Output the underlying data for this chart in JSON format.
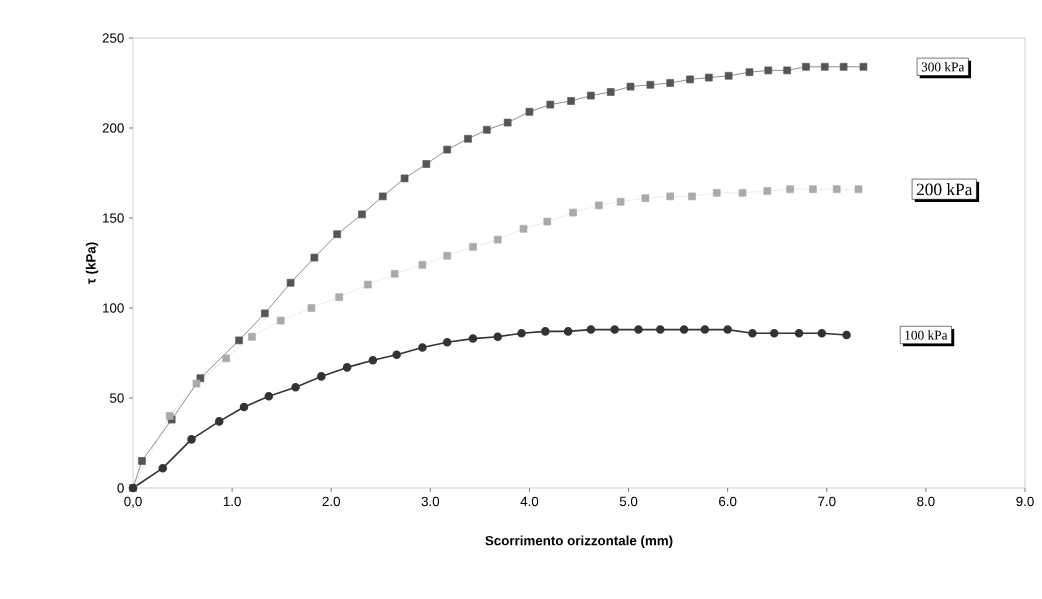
{
  "chart_data": {
    "type": "line",
    "xlabel": "Scorrimento orizzontale (mm)",
    "ylabel": "τ (kPa)",
    "xlim": [
      0,
      9
    ],
    "ylim": [
      0,
      250
    ],
    "xticks": [
      {
        "value": 0,
        "label": "0,0"
      },
      {
        "value": 1,
        "label": "1.0"
      },
      {
        "value": 2,
        "label": "2.0"
      },
      {
        "value": 3,
        "label": "3.0"
      },
      {
        "value": 4,
        "label": "4.0"
      },
      {
        "value": 5,
        "label": "5.0"
      },
      {
        "value": 6,
        "label": "6.0"
      },
      {
        "value": 7,
        "label": "7.0"
      },
      {
        "value": 8,
        "label": "8.0"
      },
      {
        "value": 9,
        "label": "9.0"
      }
    ],
    "yticks": [
      0,
      50,
      100,
      150,
      200,
      250
    ],
    "grid": false,
    "legend": false,
    "series": [
      {
        "name": "300 kPa",
        "color": "#555555",
        "marker": "square",
        "line_style": "solid",
        "x": [
          0,
          0.09,
          0.39,
          0.68,
          1.07,
          1.33,
          1.59,
          1.83,
          2.06,
          2.31,
          2.52,
          2.74,
          2.96,
          3.17,
          3.38,
          3.57,
          3.78,
          4.0,
          4.21,
          4.42,
          4.62,
          4.82,
          5.02,
          5.22,
          5.42,
          5.62,
          5.81,
          6.01,
          6.22,
          6.41,
          6.6,
          6.79,
          6.98,
          7.17,
          7.37
        ],
        "values": [
          0,
          15,
          38,
          61,
          82,
          97,
          114,
          128,
          141,
          152,
          162,
          172,
          180,
          188,
          194,
          199,
          203,
          209,
          213,
          215,
          218,
          220,
          223,
          224,
          225,
          227,
          228,
          229,
          231,
          232,
          232,
          234,
          234,
          234,
          234
        ]
      },
      {
        "name": "200 kPa",
        "color": "#aaaaaa",
        "marker": "square",
        "line_style": "dotted",
        "x": [
          0,
          0.37,
          0.64,
          0.94,
          1.2,
          1.49,
          1.8,
          2.08,
          2.37,
          2.64,
          2.92,
          3.17,
          3.43,
          3.68,
          3.94,
          4.18,
          4.44,
          4.7,
          4.92,
          5.17,
          5.42,
          5.64,
          5.89,
          6.15,
          6.4,
          6.63,
          6.86,
          7.1,
          7.32
        ],
        "values": [
          0,
          40,
          58,
          72,
          84,
          93,
          100,
          106,
          113,
          119,
          124,
          129,
          134,
          138,
          144,
          148,
          153,
          157,
          159,
          161,
          162,
          162,
          164,
          164,
          165,
          166,
          166,
          166,
          166
        ]
      },
      {
        "name": "100 kPa",
        "color": "#333333",
        "marker": "circle",
        "line_style": "solid",
        "x": [
          0,
          0.3,
          0.59,
          0.87,
          1.12,
          1.37,
          1.64,
          1.9,
          2.16,
          2.42,
          2.66,
          2.92,
          3.17,
          3.43,
          3.68,
          3.92,
          4.16,
          4.39,
          4.62,
          4.86,
          5.1,
          5.32,
          5.56,
          5.77,
          6.0,
          6.25,
          6.47,
          6.72,
          6.95,
          7.2
        ],
        "values": [
          0,
          11,
          27,
          37,
          45,
          51,
          56,
          62,
          67,
          71,
          74,
          78,
          81,
          83,
          84,
          86,
          87,
          87,
          88,
          88,
          88,
          88,
          88,
          88,
          88,
          86,
          86,
          86,
          86,
          85
        ]
      }
    ]
  }
}
